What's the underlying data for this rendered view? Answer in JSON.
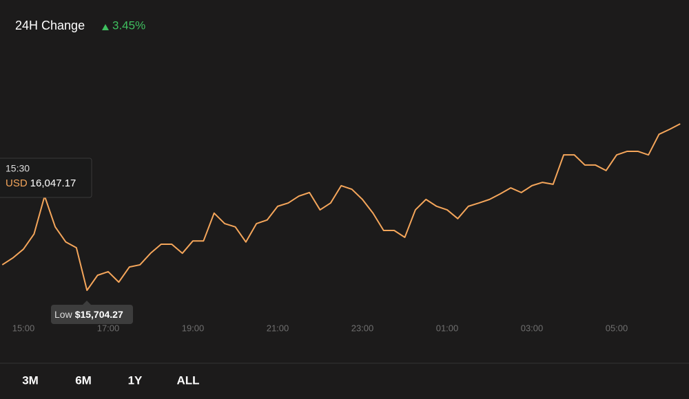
{
  "header": {
    "title": "24H Change",
    "change": "3.45%"
  },
  "chart_data": {
    "type": "line",
    "color": "#f5a65b",
    "x": [
      "14:30",
      "14:45",
      "15:00",
      "15:15",
      "15:30",
      "15:45",
      "16:00",
      "16:15",
      "16:30",
      "16:45",
      "17:00",
      "17:15",
      "17:30",
      "17:45",
      "18:00",
      "18:15",
      "18:30",
      "18:45",
      "19:00",
      "19:15",
      "19:30",
      "19:45",
      "20:00",
      "20:15",
      "20:30",
      "20:45",
      "21:00",
      "21:15",
      "21:30",
      "21:45",
      "22:00",
      "22:15",
      "22:30",
      "22:45",
      "23:00",
      "23:15",
      "23:30",
      "23:45",
      "00:00",
      "00:15",
      "00:30",
      "00:45",
      "01:00",
      "01:15",
      "01:30",
      "01:45",
      "02:00",
      "02:15",
      "02:30",
      "02:45",
      "03:00",
      "03:15",
      "03:30",
      "03:45",
      "04:00",
      "04:15",
      "04:30",
      "04:45",
      "05:00",
      "05:15",
      "05:30",
      "05:45",
      "06:00",
      "06:15",
      "06:30"
    ],
    "values": [
      15797,
      15822,
      15854,
      15909,
      16047.17,
      15935,
      15880,
      15859,
      15704.27,
      15759,
      15772,
      15734,
      15789,
      15797,
      15839,
      15872,
      15872,
      15839,
      15884,
      15884,
      15985,
      15947,
      15935,
      15880,
      15947,
      15960,
      16010,
      16022,
      16047,
      16060,
      15997,
      16022,
      16085,
      16072,
      16035,
      15985,
      15922,
      15922,
      15897,
      15997,
      16035,
      16010,
      15997,
      15965,
      16010,
      16022,
      16035,
      16055,
      16077,
      16060,
      16085,
      16097,
      16090,
      16197,
      16197,
      16160,
      16160,
      16140,
      16197,
      16210,
      16210,
      16197,
      16272,
      16290,
      16310
    ],
    "value_labels": [
      null,
      null,
      null,
      null,
      "16,047.17",
      null,
      null,
      null,
      "$15,704.27",
      null,
      null,
      null,
      null,
      null,
      null,
      null,
      null,
      null,
      null,
      null,
      null,
      null,
      null,
      null,
      null,
      null,
      null,
      null,
      null,
      null,
      null,
      null,
      null,
      null,
      null,
      null,
      null,
      null,
      null,
      null,
      null,
      null,
      null,
      null,
      null,
      null,
      null,
      null,
      null,
      null,
      null,
      null,
      null,
      null,
      null,
      null,
      null,
      null,
      null,
      null,
      null,
      null,
      null,
      null,
      null
    ],
    "xticks": [
      "15:00",
      "17:00",
      "19:00",
      "21:00",
      "23:00",
      "01:00",
      "03:00",
      "05:00"
    ],
    "tooltip_currency": "USD",
    "low_label": "Low"
  },
  "range_buttons": [
    "3M",
    "6M",
    "1Y",
    "ALL"
  ]
}
